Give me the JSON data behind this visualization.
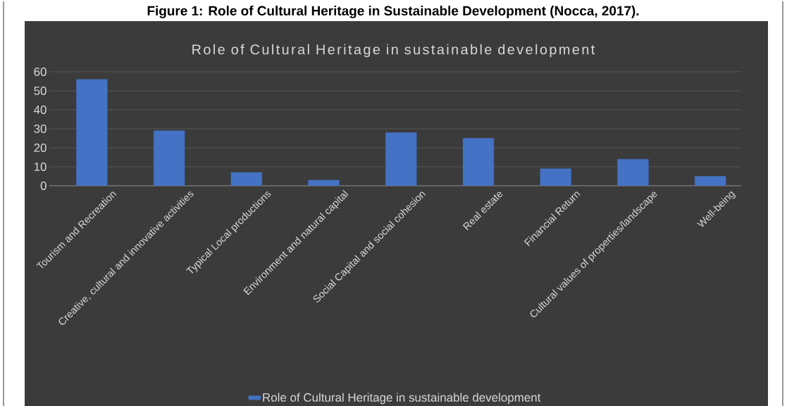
{
  "chart_data": {
    "type": "bar",
    "title": "Figure 1: Role of Cultural Heritage in Sustainable Development (Nocca, 2017).",
    "subtitle": "Role of Cultural Heritage in sustainable development",
    "categories": [
      "Tourism and Recreation",
      "Creative, cultural and innovative activities",
      "Typical Local productions",
      "Environment and natural capital",
      "Social Capital and social cohesion",
      "Real estate",
      "Financial Return",
      "Cultural values of properties/landscape",
      "Well-being"
    ],
    "series": [
      {
        "name": "Role of Cultural Heritage in sustainable development",
        "color": "#4472c4",
        "values": [
          56,
          29,
          7,
          3,
          28,
          25,
          9,
          14,
          5
        ]
      }
    ],
    "ylim": [
      0,
      60
    ],
    "yticks": [
      0,
      10,
      20,
      30,
      40,
      50,
      60
    ],
    "grid": "y",
    "legend": "bottom"
  }
}
